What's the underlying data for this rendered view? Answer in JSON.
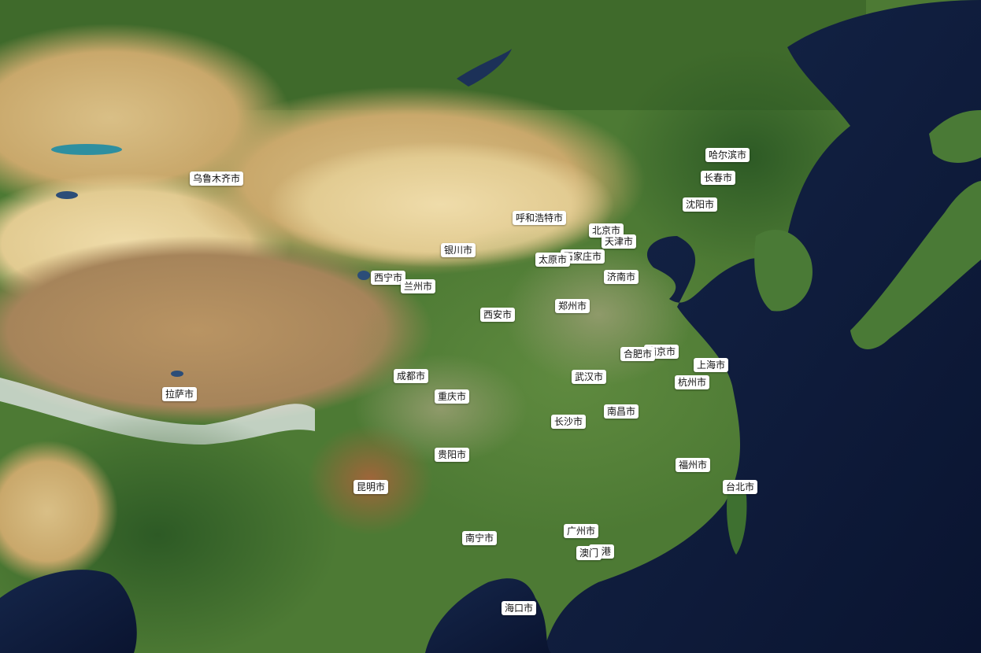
{
  "map": {
    "cities": [
      {
        "id": "urumqi",
        "name": "乌鲁木齐市"
      },
      {
        "id": "harbin",
        "name": "哈尔滨市"
      },
      {
        "id": "changchun",
        "name": "长春市"
      },
      {
        "id": "shenyang",
        "name": "沈阳市"
      },
      {
        "id": "hohhot",
        "name": "呼和浩特市"
      },
      {
        "id": "beijing",
        "name": "北京市"
      },
      {
        "id": "tianjin",
        "name": "天津市"
      },
      {
        "id": "shijiazhuang",
        "name": "石家庄市"
      },
      {
        "id": "taiyuan",
        "name": "太原市"
      },
      {
        "id": "yinchuan",
        "name": "银川市"
      },
      {
        "id": "jinan",
        "name": "济南市"
      },
      {
        "id": "xining",
        "name": "西宁市"
      },
      {
        "id": "lanzhou",
        "name": "兰州市"
      },
      {
        "id": "zhengzhou",
        "name": "郑州市"
      },
      {
        "id": "xian",
        "name": "西安市"
      },
      {
        "id": "nanjing",
        "name": "南京市"
      },
      {
        "id": "hefei",
        "name": "合肥市"
      },
      {
        "id": "shanghai",
        "name": "上海市"
      },
      {
        "id": "hangzhou",
        "name": "杭州市"
      },
      {
        "id": "wuhan",
        "name": "武汉市"
      },
      {
        "id": "chengdu",
        "name": "成都市"
      },
      {
        "id": "chongqing",
        "name": "重庆市"
      },
      {
        "id": "lhasa",
        "name": "拉萨市"
      },
      {
        "id": "nanchang",
        "name": "南昌市"
      },
      {
        "id": "changsha",
        "name": "长沙市"
      },
      {
        "id": "guiyang",
        "name": "贵阳市"
      },
      {
        "id": "fuzhou",
        "name": "福州市"
      },
      {
        "id": "taipei",
        "name": "台北市"
      },
      {
        "id": "kunming",
        "name": "昆明市"
      },
      {
        "id": "guangzhou",
        "name": "广州市"
      },
      {
        "id": "nanning",
        "name": "南宁市"
      },
      {
        "id": "hongkong",
        "name": "香港"
      },
      {
        "id": "macau",
        "name": "澳门"
      },
      {
        "id": "haikou",
        "name": "海口市"
      }
    ]
  }
}
